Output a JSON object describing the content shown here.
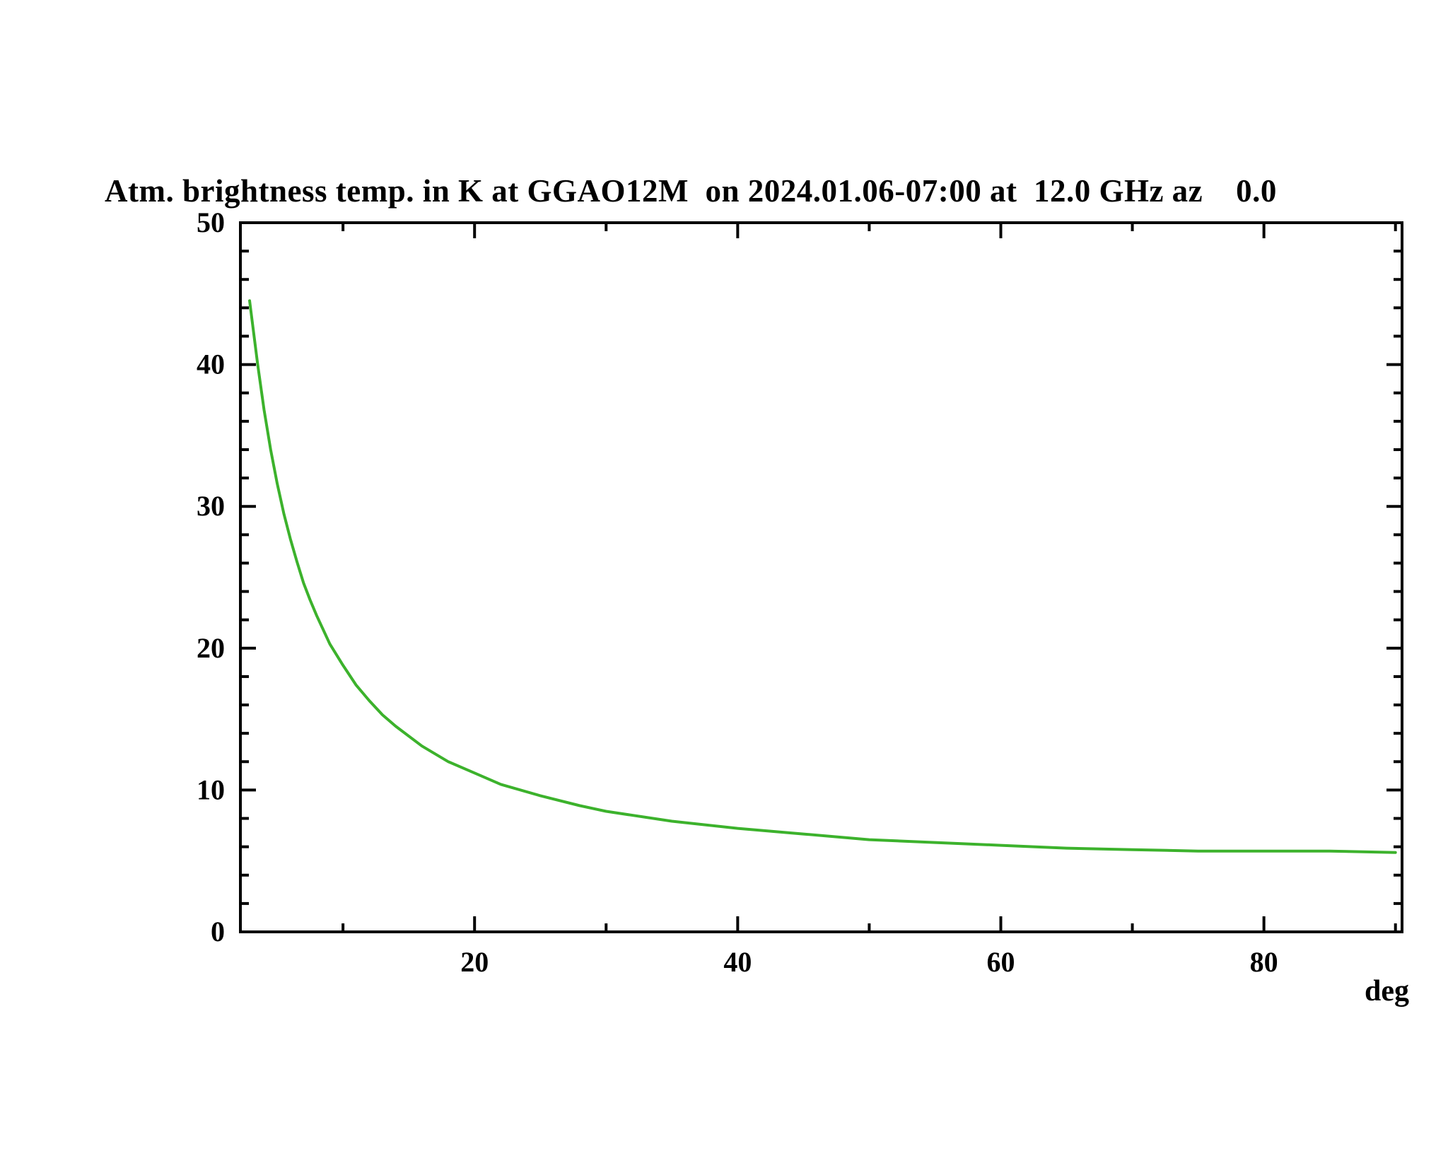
{
  "title": "Atm. brightness temp. in K at GGAO12M  on 2024.01.06-07:00 at  12.0 GHz az    0.0",
  "page": {
    "background": "#ffffff"
  },
  "colors": {
    "axis": "#000000",
    "curve": "#3cb22c",
    "text": "#000000"
  },
  "chart_data": {
    "type": "line",
    "title": "Atm. brightness temp. in K at GGAO12M  on 2024.01.06-07:00 at  12.0 GHz az    0.0",
    "xlabel": "deg",
    "ylabel": "",
    "xlim": [
      2.2,
      90.5
    ],
    "ylim": [
      0,
      50
    ],
    "x_major_ticks": [
      20,
      40,
      60,
      80
    ],
    "x_minor_ticks": [
      10,
      30,
      50,
      70,
      90
    ],
    "y_major_ticks": [
      0,
      10,
      20,
      30,
      40,
      50
    ],
    "y_minor_step": 2,
    "grid": false,
    "legend": "none",
    "series": [
      {
        "name": "atm_brightness_temp_K",
        "color": "#3cb22c",
        "points": [
          [
            2.9,
            44.5
          ],
          [
            3.5,
            40.1
          ],
          [
            4.0,
            36.8
          ],
          [
            4.5,
            34.0
          ],
          [
            5.0,
            31.6
          ],
          [
            5.5,
            29.5
          ],
          [
            6.0,
            27.7
          ],
          [
            6.5,
            26.1
          ],
          [
            7.0,
            24.6
          ],
          [
            7.5,
            23.4
          ],
          [
            8.0,
            22.3
          ],
          [
            9.0,
            20.3
          ],
          [
            10.0,
            18.8
          ],
          [
            11.0,
            17.4
          ],
          [
            12.0,
            16.3
          ],
          [
            13.0,
            15.3
          ],
          [
            14.0,
            14.5
          ],
          [
            16.0,
            13.1
          ],
          [
            18.0,
            12.0
          ],
          [
            20.0,
            11.2
          ],
          [
            22.0,
            10.4
          ],
          [
            25.0,
            9.6
          ],
          [
            28.0,
            8.9
          ],
          [
            30.0,
            8.5
          ],
          [
            35.0,
            7.8
          ],
          [
            40.0,
            7.3
          ],
          [
            45.0,
            6.9
          ],
          [
            50.0,
            6.5
          ],
          [
            55.0,
            6.3
          ],
          [
            60.0,
            6.1
          ],
          [
            65.0,
            5.9
          ],
          [
            70.0,
            5.8
          ],
          [
            75.0,
            5.7
          ],
          [
            80.0,
            5.7
          ],
          [
            85.0,
            5.7
          ],
          [
            90.0,
            5.6
          ]
        ]
      }
    ]
  }
}
